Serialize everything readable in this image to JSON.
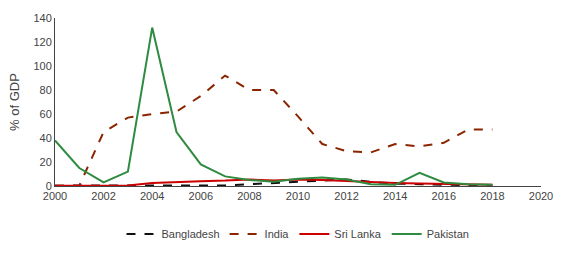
{
  "chart_data": {
    "type": "line",
    "x": [
      2000,
      2001,
      2002,
      2003,
      2004,
      2005,
      2006,
      2007,
      2008,
      2009,
      2010,
      2011,
      2012,
      2013,
      2014,
      2015,
      2016,
      2017,
      2018
    ],
    "series": [
      {
        "name": "Bangladesh",
        "color": "#111111",
        "line_style": "dashed",
        "values": [
          0.3,
          0.3,
          0.3,
          0.3,
          0.3,
          0.3,
          0.3,
          0.5,
          1.5,
          2.5,
          4.0,
          5.0,
          5.5,
          3.5,
          2.0,
          1.5,
          1.0,
          0.5,
          0.3
        ]
      },
      {
        "name": "India",
        "color": "#8B2500",
        "line_style": "dashed",
        "values": [
          0.3,
          0.3,
          45.0,
          57.0,
          60.0,
          62.0,
          75.0,
          92.0,
          80.0,
          80.0,
          58.0,
          35.0,
          29.0,
          28.0,
          35.0,
          33.0,
          36.0,
          47.0,
          47.0
        ]
      },
      {
        "name": "Sri Lanka",
        "color": "#cc0000",
        "line_style": "solid",
        "values": [
          0.3,
          0.3,
          0.3,
          0.5,
          2.5,
          3.5,
          4.0,
          4.5,
          5.5,
          4.5,
          5.5,
          5.0,
          4.0,
          3.0,
          2.5,
          2.0,
          1.5,
          1.2,
          1.0
        ]
      },
      {
        "name": "Pakistan",
        "color": "#2e8b40",
        "line_style": "solid",
        "values": [
          38.0,
          15.0,
          3.0,
          12.0,
          132.0,
          45.0,
          18.0,
          8.0,
          5.0,
          3.5,
          6.0,
          7.0,
          5.5,
          1.5,
          1.0,
          11.0,
          3.0,
          1.5,
          1.0
        ]
      }
    ],
    "ylabel": "% of GDP",
    "xlim": [
      2000,
      2020
    ],
    "xticks": [
      2000,
      2002,
      2004,
      2006,
      2008,
      2010,
      2012,
      2014,
      2016,
      2018,
      2020
    ],
    "ylim": [
      0,
      140
    ],
    "yticks": [
      0,
      20,
      40,
      60,
      80,
      100,
      120,
      140
    ],
    "grid": false,
    "legend": "bottom"
  }
}
